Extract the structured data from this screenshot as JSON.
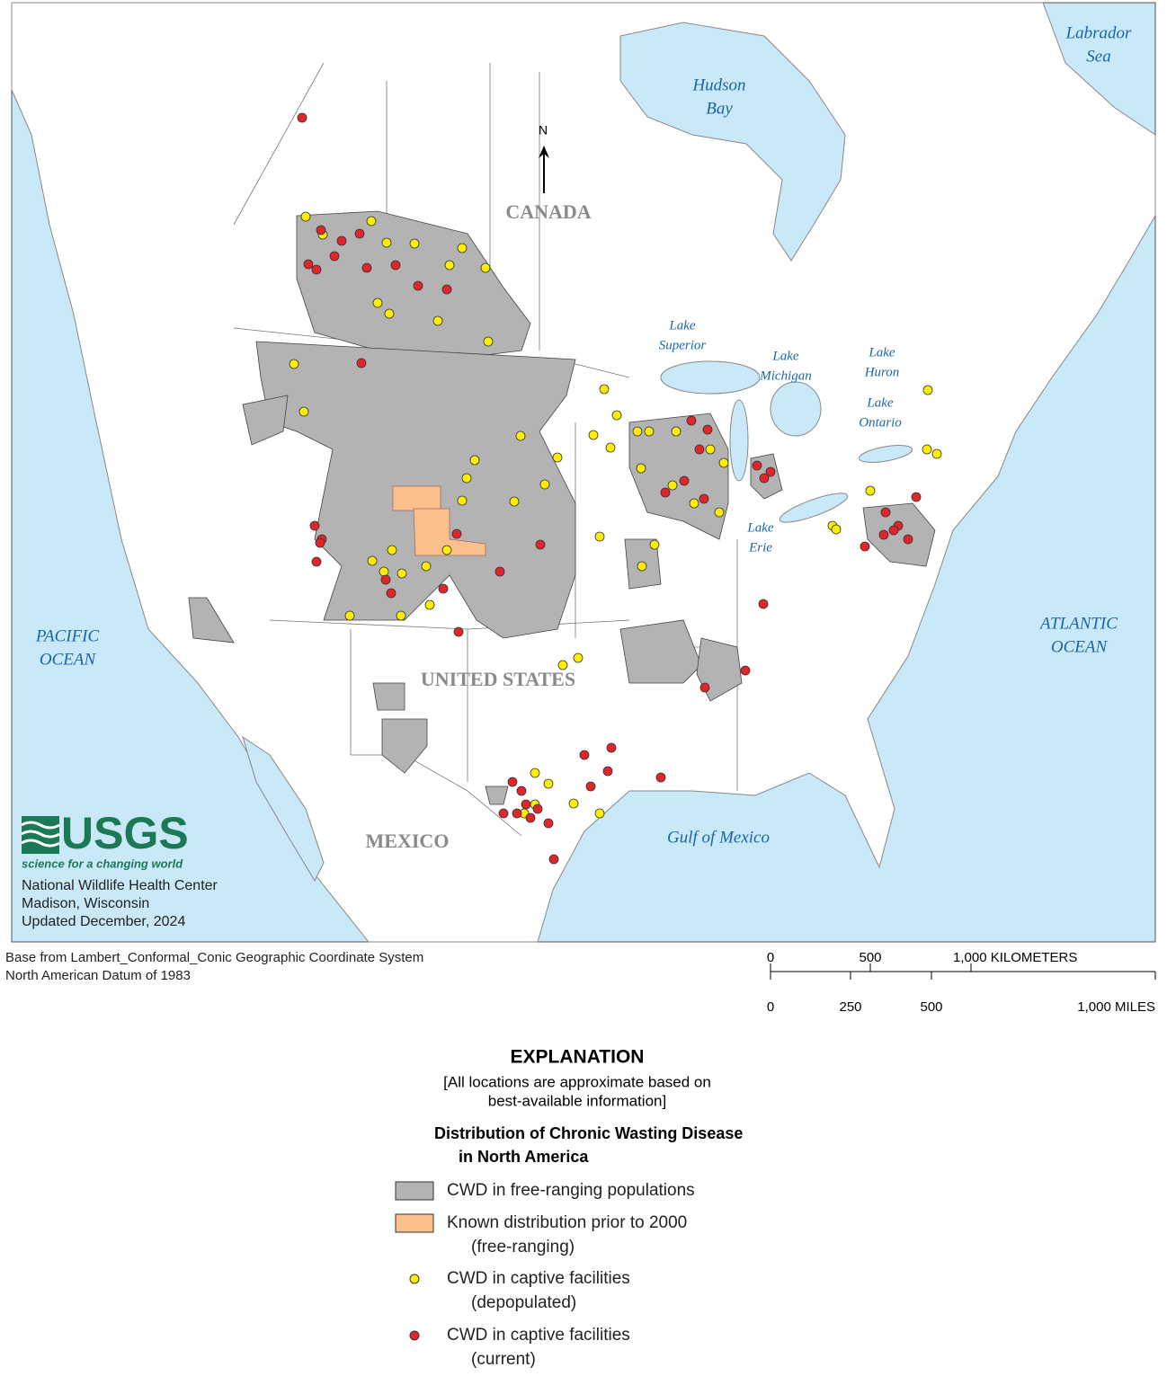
{
  "map": {
    "water_labels": [
      {
        "lines": [
          "Labrador",
          "Sea"
        ]
      },
      {
        "lines": [
          "Hudson",
          "Bay"
        ]
      },
      {
        "lines": [
          "Lake",
          "Superior"
        ]
      },
      {
        "lines": [
          "Lake",
          "Michigan"
        ]
      },
      {
        "lines": [
          "Lake",
          "Huron"
        ]
      },
      {
        "lines": [
          "Lake",
          "Ontario"
        ]
      },
      {
        "lines": [
          "Lake",
          "Erie"
        ]
      },
      {
        "lines": [
          "PACIFIC",
          "OCEAN"
        ]
      },
      {
        "lines": [
          "ATLANTIC",
          "OCEAN"
        ]
      },
      {
        "lines": [
          "Gulf of Mexico"
        ]
      }
    ],
    "country_labels": [
      "CANADA",
      "UNITED STATES",
      "MEXICO"
    ],
    "north_arrow": "N",
    "logo": {
      "name": "USGS",
      "tagline": "science for a changing world"
    },
    "credits": [
      "National Wildlife Health Center",
      "Madison, Wisconsin",
      "Updated December, 2024"
    ]
  },
  "source": [
    "Base from Lambert_Conformal_Conic Geographic Coordinate System",
    "North American Datum of 1983"
  ],
  "scale": {
    "km": [
      "0",
      "500",
      "1,000 KILOMETERS"
    ],
    "miles": [
      "0",
      "250",
      "500",
      "1,000 MILES"
    ]
  },
  "legend": {
    "title": "EXPLANATION",
    "note": [
      "[All locations are approximate based on",
      "best-available information]"
    ],
    "subtitle": [
      "Distribution of Chronic Wasting Disease",
      "in North America"
    ],
    "items": [
      {
        "lines": [
          "CWD in free-ranging populations"
        ]
      },
      {
        "lines": [
          "Known distribution prior to 2000",
          "(free-ranging)"
        ]
      },
      {
        "lines": [
          "CWD in captive facilities",
          "(depopulated)"
        ]
      },
      {
        "lines": [
          "CWD in captive facilities",
          "(current)"
        ]
      }
    ]
  }
}
